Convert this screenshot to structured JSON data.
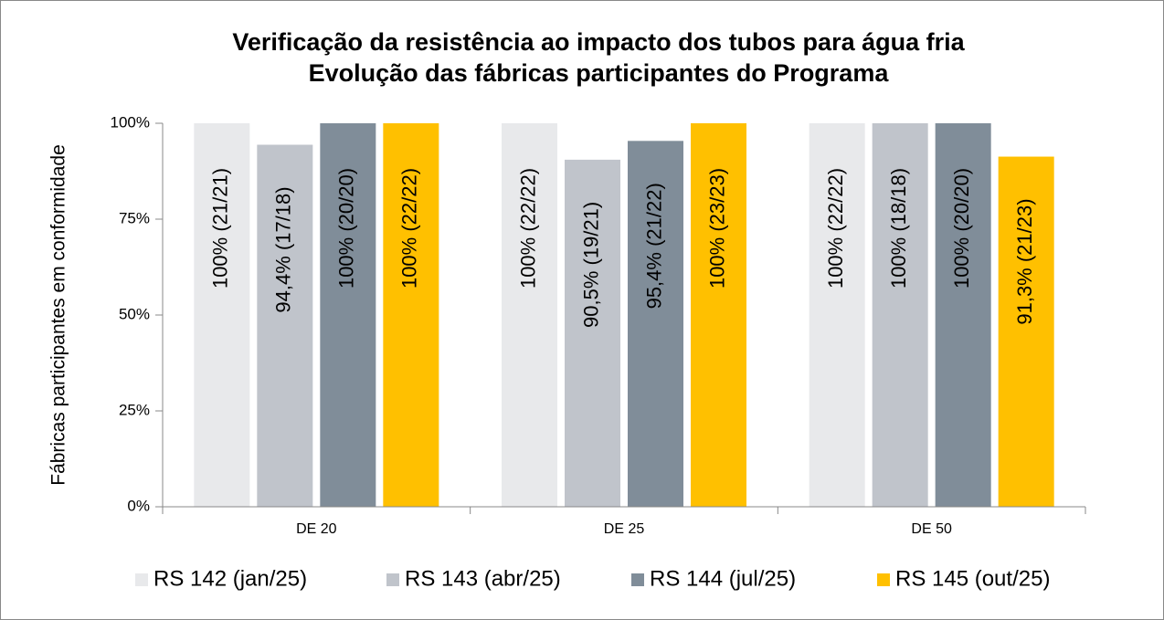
{
  "chart_data": {
    "type": "bar",
    "title": "Verificação da resistência ao impacto dos tubos para água fria",
    "subtitle": "Evolução das fábricas participantes do Programa",
    "y_label": "Fábricas participantes em conformidade",
    "categories": [
      "DE 20",
      "DE 25",
      "DE 50"
    ],
    "series": [
      {
        "name": "RS 142 (jan/25)",
        "color": "#e8e9eb",
        "values": [
          100,
          100,
          100
        ],
        "value_labels": [
          "100% (21/21)",
          "100% (22/22)",
          "100% (22/22)"
        ]
      },
      {
        "name": "RS 143 (abr/25)",
        "color": "#c0c4cb",
        "values": [
          94.4,
          90.5,
          100
        ],
        "value_labels": [
          "94,4% (17/18)",
          "90,5% (19/21)",
          "100% (18/18)"
        ]
      },
      {
        "name": "RS 144 (jul/25)",
        "color": "#808d99",
        "values": [
          100,
          95.4,
          100
        ],
        "value_labels": [
          "100% (20/20)",
          "95,4% (21/22)",
          "100% (20/20)"
        ]
      },
      {
        "name": "RS 145 (out/25)",
        "color": "#ffc000",
        "values": [
          100,
          100,
          91.3
        ],
        "value_labels": [
          "100% (22/22)",
          "100% (23/23)",
          "91,3% (21/23)"
        ]
      }
    ],
    "ylim": [
      0,
      100
    ],
    "yticks": [
      {
        "value": 0,
        "label": "0%"
      },
      {
        "value": 25,
        "label": "25%"
      },
      {
        "value": 50,
        "label": "50%"
      },
      {
        "value": 75,
        "label": "75%"
      },
      {
        "value": 100,
        "label": "100%"
      }
    ],
    "legend": "bottom"
  }
}
